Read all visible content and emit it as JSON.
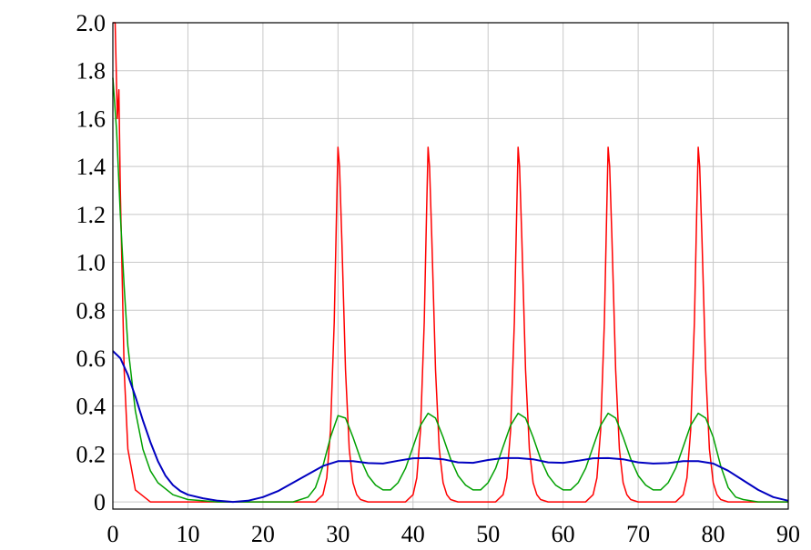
{
  "chart_data": {
    "type": "line",
    "title": "",
    "xlabel": "",
    "ylabel": "",
    "xlim": [
      0,
      90
    ],
    "ylim": [
      -0.03,
      2.0
    ],
    "grid": true,
    "x_ticks": [
      0,
      10,
      20,
      30,
      40,
      50,
      60,
      70,
      80,
      90
    ],
    "x_tick_labels": [
      "0",
      "10",
      "20",
      "30",
      "40",
      "50",
      "60",
      "70",
      "80",
      "90"
    ],
    "y_ticks": [
      0,
      0.2,
      0.4,
      0.6,
      0.8,
      1.0,
      1.2,
      1.4,
      1.6,
      1.8,
      2.0
    ],
    "y_tick_labels": [
      "0",
      "0.2",
      "0.4",
      "0.6",
      "0.8",
      "1.0",
      "1.2",
      "1.4",
      "1.6",
      "1.8",
      "2.0"
    ],
    "series": [
      {
        "color": "#ff0000",
        "x": [
          0,
          0.3,
          0.6,
          0.8,
          1.0,
          1.5,
          2,
          3,
          5,
          10,
          20,
          27,
          28,
          28.5,
          29,
          29.5,
          29.8,
          30,
          30.2,
          30.5,
          31,
          31.5,
          32,
          32.5,
          33,
          34,
          39,
          40,
          40.5,
          41,
          41.5,
          41.8,
          42,
          42.2,
          42.5,
          43,
          43.5,
          44,
          44.5,
          45,
          46,
          51,
          52,
          52.5,
          53,
          53.5,
          53.8,
          54,
          54.2,
          54.5,
          55,
          55.5,
          56,
          56.5,
          57,
          58,
          63,
          64,
          64.5,
          65,
          65.5,
          65.8,
          66,
          66.2,
          66.5,
          67,
          67.5,
          68,
          68.5,
          69,
          70,
          75,
          76,
          76.5,
          77,
          77.5,
          77.8,
          78,
          78.2,
          78.5,
          79,
          79.5,
          80,
          80.5,
          81,
          82,
          90
        ],
        "y": [
          2.0,
          2.0,
          1.6,
          1.72,
          1.3,
          0.55,
          0.22,
          0.05,
          0.0,
          0.0,
          0.0,
          0.0,
          0.03,
          0.1,
          0.3,
          0.75,
          1.2,
          1.48,
          1.4,
          1.1,
          0.55,
          0.22,
          0.08,
          0.03,
          0.01,
          0.0,
          0.0,
          0.03,
          0.1,
          0.3,
          0.75,
          1.2,
          1.48,
          1.4,
          1.1,
          0.55,
          0.22,
          0.08,
          0.03,
          0.01,
          0.0,
          0.0,
          0.03,
          0.1,
          0.3,
          0.75,
          1.2,
          1.48,
          1.4,
          1.1,
          0.55,
          0.22,
          0.08,
          0.03,
          0.01,
          0.0,
          0.0,
          0.03,
          0.1,
          0.3,
          0.75,
          1.2,
          1.48,
          1.4,
          1.1,
          0.55,
          0.22,
          0.08,
          0.03,
          0.01,
          0.0,
          0.0,
          0.03,
          0.1,
          0.3,
          0.75,
          1.2,
          1.48,
          1.4,
          1.1,
          0.55,
          0.22,
          0.08,
          0.03,
          0.01,
          0.0,
          0.0
        ]
      },
      {
        "color": "#00a000",
        "x": [
          0,
          0.5,
          1,
          1.5,
          2,
          3,
          4,
          5,
          6,
          8,
          10,
          14,
          20,
          24,
          26,
          27,
          28,
          29,
          30,
          31,
          32,
          33,
          34,
          35,
          36,
          37,
          38,
          39,
          40,
          41,
          42,
          43,
          44,
          45,
          46,
          47,
          48,
          49,
          50,
          51,
          52,
          53,
          54,
          55,
          56,
          57,
          58,
          59,
          60,
          61,
          62,
          63,
          64,
          65,
          66,
          67,
          68,
          69,
          70,
          71,
          72,
          73,
          74,
          75,
          76,
          77,
          78,
          79,
          80,
          81,
          82,
          83,
          84,
          86,
          90
        ],
        "y": [
          1.77,
          1.55,
          1.2,
          0.9,
          0.65,
          0.38,
          0.22,
          0.13,
          0.08,
          0.03,
          0.01,
          0.0,
          0.0,
          0.0,
          0.02,
          0.06,
          0.15,
          0.27,
          0.36,
          0.35,
          0.27,
          0.18,
          0.11,
          0.07,
          0.05,
          0.05,
          0.08,
          0.14,
          0.23,
          0.32,
          0.37,
          0.35,
          0.27,
          0.18,
          0.11,
          0.07,
          0.05,
          0.05,
          0.08,
          0.14,
          0.23,
          0.32,
          0.37,
          0.35,
          0.27,
          0.18,
          0.11,
          0.07,
          0.05,
          0.05,
          0.08,
          0.14,
          0.23,
          0.32,
          0.37,
          0.35,
          0.27,
          0.18,
          0.11,
          0.07,
          0.05,
          0.05,
          0.08,
          0.14,
          0.23,
          0.32,
          0.37,
          0.35,
          0.27,
          0.15,
          0.06,
          0.02,
          0.01,
          0.0,
          0.0
        ]
      },
      {
        "color": "#0000c0",
        "x": [
          0,
          1,
          2,
          3,
          4,
          5,
          6,
          7,
          8,
          9,
          10,
          12,
          14,
          16,
          18,
          20,
          22,
          24,
          26,
          28,
          30,
          32,
          34,
          36,
          38,
          40,
          42,
          44,
          46,
          48,
          50,
          52,
          54,
          56,
          58,
          60,
          62,
          64,
          66,
          68,
          70,
          72,
          74,
          76,
          78,
          80,
          82,
          84,
          86,
          88,
          90
        ],
        "y": [
          0.63,
          0.6,
          0.53,
          0.44,
          0.34,
          0.25,
          0.17,
          0.11,
          0.07,
          0.045,
          0.03,
          0.015,
          0.005,
          0.0,
          0.005,
          0.02,
          0.045,
          0.08,
          0.115,
          0.15,
          0.17,
          0.17,
          0.162,
          0.16,
          0.172,
          0.182,
          0.183,
          0.178,
          0.165,
          0.163,
          0.175,
          0.183,
          0.183,
          0.178,
          0.165,
          0.163,
          0.172,
          0.182,
          0.183,
          0.178,
          0.165,
          0.16,
          0.162,
          0.17,
          0.17,
          0.16,
          0.13,
          0.09,
          0.05,
          0.02,
          0.005
        ]
      }
    ]
  }
}
